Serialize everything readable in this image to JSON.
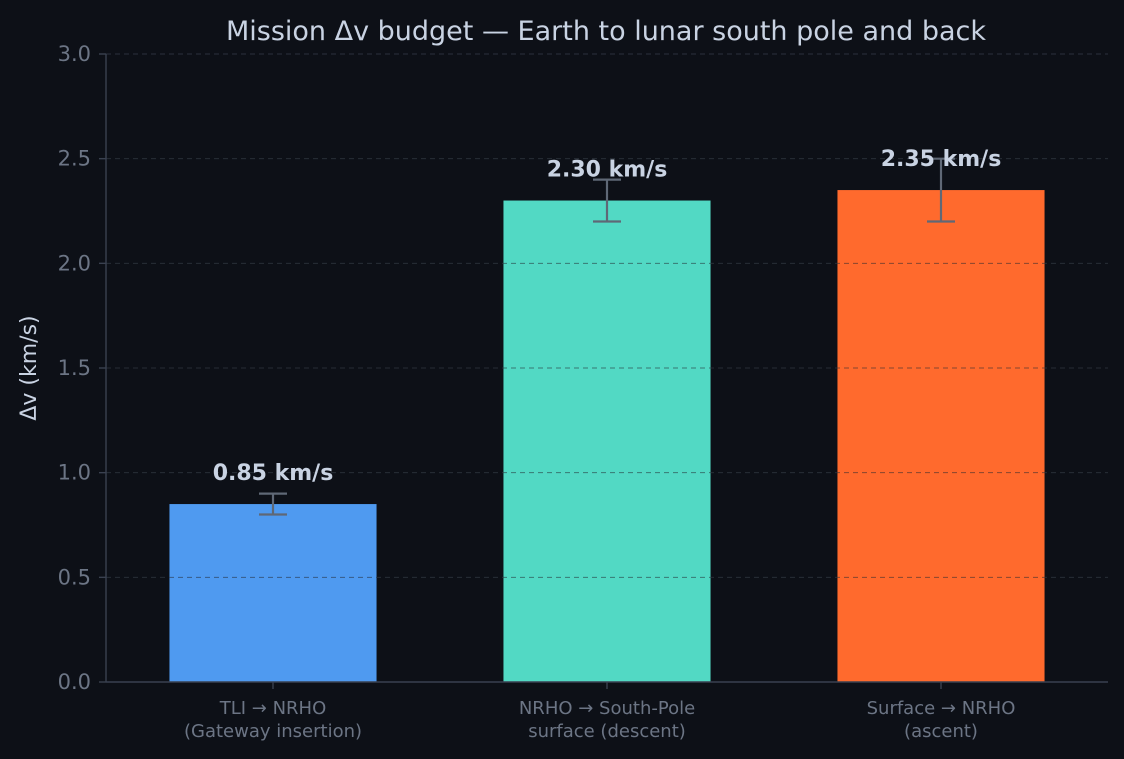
{
  "chart_data": {
    "type": "bar",
    "title": "Mission Δv budget — Earth to lunar south pole and back",
    "xlabel": "",
    "ylabel": "Δv  (km/s)",
    "ylim": [
      0,
      3.0
    ],
    "yticks": [
      "0.0",
      "0.5",
      "1.0",
      "1.5",
      "2.0",
      "2.5",
      "3.0"
    ],
    "categories": [
      [
        "TLI → NRHO",
        "(Gateway insertion)"
      ],
      [
        "NRHO → South-Pole",
        "surface (descent)"
      ],
      [
        "Surface → NRHO",
        "(ascent)"
      ]
    ],
    "values": [
      0.85,
      2.3,
      2.35
    ],
    "error_low": [
      0.8,
      2.2,
      2.2
    ],
    "error_high": [
      0.9,
      2.4,
      2.5
    ],
    "data_labels": [
      "0.85 km/s",
      "2.30 km/s",
      "2.35 km/s"
    ],
    "colors": [
      "#4f9af0",
      "#52d9c4",
      "#ff6a2d"
    ],
    "grid": true
  }
}
